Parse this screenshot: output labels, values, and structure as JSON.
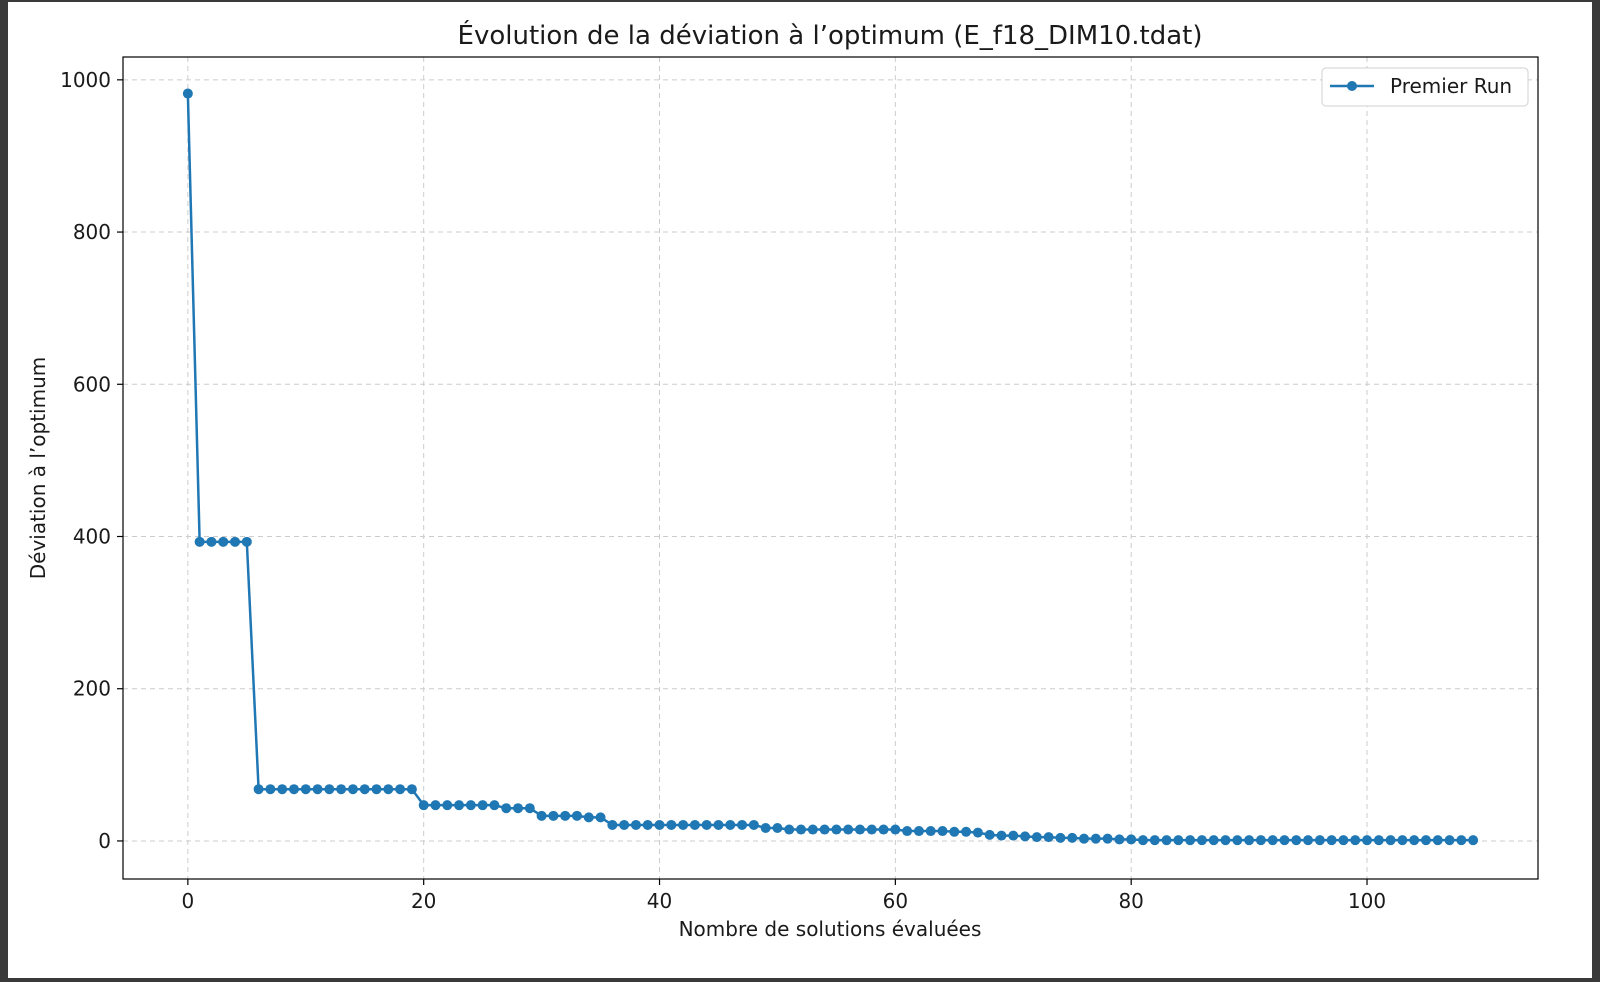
{
  "chart_data": {
    "type": "line",
    "title": "Évolution de la déviation à l’optimum (E_f18_DIM10.tdat)",
    "xlabel": "Nombre de solutions évaluées",
    "ylabel": "Déviation à l’optimum",
    "xlim": [
      -5.5,
      114.5
    ],
    "ylim": [
      -50,
      1030
    ],
    "xticks": [
      0,
      20,
      40,
      60,
      80,
      100
    ],
    "yticks": [
      0,
      200,
      400,
      600,
      800,
      1000
    ],
    "grid": true,
    "legend_position": "top-right",
    "colors": {
      "series": "#1f77b4",
      "grid": "#cccccc",
      "axes": "#000000"
    },
    "x": [
      0,
      1,
      2,
      3,
      4,
      5,
      6,
      7,
      8,
      9,
      10,
      11,
      12,
      13,
      14,
      15,
      16,
      17,
      18,
      19,
      20,
      21,
      22,
      23,
      24,
      25,
      26,
      27,
      28,
      29,
      30,
      31,
      32,
      33,
      34,
      35,
      36,
      37,
      38,
      39,
      40,
      41,
      42,
      43,
      44,
      45,
      46,
      47,
      48,
      49,
      50,
      51,
      52,
      53,
      54,
      55,
      56,
      57,
      58,
      59,
      60,
      61,
      62,
      63,
      64,
      65,
      66,
      67,
      68,
      69,
      70,
      71,
      72,
      73,
      74,
      75,
      76,
      77,
      78,
      79,
      80,
      81,
      82,
      83,
      84,
      85,
      86,
      87,
      88,
      89,
      90,
      91,
      92,
      93,
      94,
      95,
      96,
      97,
      98,
      99,
      100,
      101,
      102,
      103,
      104,
      105,
      106,
      107,
      108,
      109
    ],
    "series": [
      {
        "name": "Premier Run",
        "values": [
          982,
          393,
          393,
          393,
          393,
          393,
          68,
          68,
          68,
          68,
          68,
          68,
          68,
          68,
          68,
          68,
          68,
          68,
          68,
          68,
          47,
          47,
          47,
          47,
          47,
          47,
          47,
          43,
          43,
          43,
          33,
          33,
          33,
          33,
          31,
          31,
          21,
          21,
          21,
          21,
          21,
          21,
          21,
          21,
          21,
          21,
          21,
          21,
          21,
          17,
          17,
          15,
          15,
          15,
          15,
          15,
          15,
          15,
          15,
          15,
          15,
          13,
          13,
          13,
          13,
          12,
          12,
          11,
          8,
          7,
          7,
          6,
          5,
          5,
          4,
          4,
          3,
          3,
          3,
          2,
          2,
          1,
          1,
          1,
          1,
          1,
          1,
          1,
          1,
          1,
          1,
          1,
          1,
          1,
          1,
          1,
          1,
          1,
          1,
          1,
          1,
          1,
          1,
          1,
          1,
          1,
          1,
          1,
          1,
          1
        ]
      }
    ]
  }
}
